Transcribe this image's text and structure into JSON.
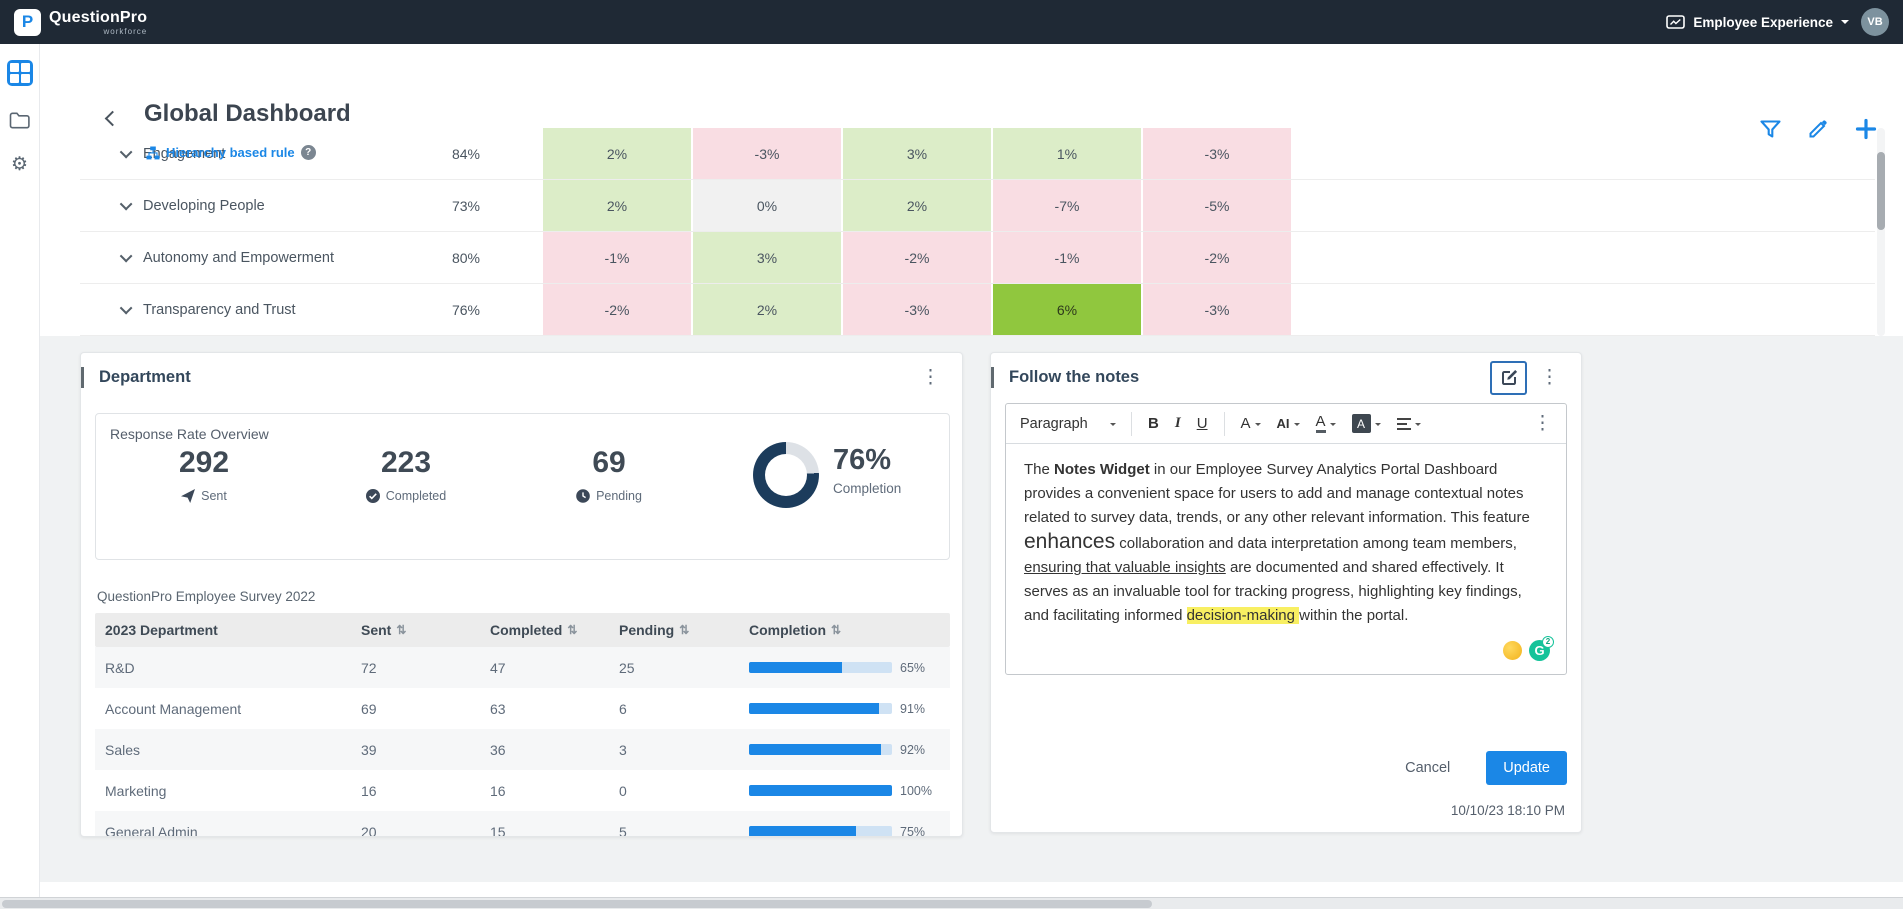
{
  "navbar": {
    "brand": "QuestionPro",
    "brand_sub": "workforce",
    "product": "Employee Experience",
    "avatar_initials": "VB"
  },
  "sidebar": {
    "items": [
      "apps",
      "folders",
      "settings"
    ]
  },
  "header": {
    "title": "Global Dashboard",
    "rule_label": "Hierarchy based rule",
    "help": "?"
  },
  "metrics_table": {
    "rows": [
      {
        "label": "Engagement",
        "score": "84%",
        "values": [
          {
            "v": "2%",
            "t": "pos"
          },
          {
            "v": "-3%",
            "t": "neg"
          },
          {
            "v": "3%",
            "t": "pos"
          },
          {
            "v": "1%",
            "t": "pos"
          },
          {
            "v": "-3%",
            "t": "neg"
          }
        ]
      },
      {
        "label": "Developing People",
        "score": "73%",
        "values": [
          {
            "v": "2%",
            "t": "pos"
          },
          {
            "v": "0%",
            "t": "neutral"
          },
          {
            "v": "2%",
            "t": "pos"
          },
          {
            "v": "-7%",
            "t": "neg"
          },
          {
            "v": "-5%",
            "t": "neg"
          }
        ]
      },
      {
        "label": "Autonomy and Empowerment",
        "score": "80%",
        "values": [
          {
            "v": "-1%",
            "t": "neg"
          },
          {
            "v": "3%",
            "t": "pos"
          },
          {
            "v": "-2%",
            "t": "neg"
          },
          {
            "v": "-1%",
            "t": "neg"
          },
          {
            "v": "-2%",
            "t": "neg"
          }
        ]
      },
      {
        "label": "Transparency and Trust",
        "score": "76%",
        "values": [
          {
            "v": "-2%",
            "t": "neg"
          },
          {
            "v": "2%",
            "t": "pos"
          },
          {
            "v": "-3%",
            "t": "neg"
          },
          {
            "v": "6%",
            "t": "strong"
          },
          {
            "v": "-3%",
            "t": "neg"
          }
        ]
      }
    ]
  },
  "department_card": {
    "title": "Department",
    "overview_title": "Response Rate Overview",
    "stats": [
      {
        "value": "292",
        "label": "Sent",
        "icon": "send-icon"
      },
      {
        "value": "223",
        "label": "Completed",
        "icon": "check-circle-icon"
      },
      {
        "value": "69",
        "label": "Pending",
        "icon": "clock-icon"
      }
    ],
    "donut": {
      "percent": "76%",
      "label": "Completion",
      "value": 76
    },
    "survey_label": "QuestionPro Employee Survey 2022",
    "table": {
      "headers": [
        {
          "label": "2023 Department",
          "sortable": false
        },
        {
          "label": "Sent",
          "sortable": true
        },
        {
          "label": "Completed",
          "sortable": true
        },
        {
          "label": "Pending",
          "sortable": true
        },
        {
          "label": "Completion",
          "sortable": true
        }
      ],
      "rows": [
        {
          "department": "R&D",
          "sent": "72",
          "completed": "47",
          "pending": "25",
          "completion": "65%",
          "pct": 65
        },
        {
          "department": "Account Management",
          "sent": "69",
          "completed": "63",
          "pending": "6",
          "completion": "91%",
          "pct": 91
        },
        {
          "department": "Sales",
          "sent": "39",
          "completed": "36",
          "pending": "3",
          "completion": "92%",
          "pct": 92
        },
        {
          "department": "Marketing",
          "sent": "16",
          "completed": "16",
          "pending": "0",
          "completion": "100%",
          "pct": 100
        },
        {
          "department": "General Admin",
          "sent": "20",
          "completed": "15",
          "pending": "5",
          "completion": "75%",
          "pct": 75
        }
      ]
    }
  },
  "notes_card": {
    "title": "Follow the notes",
    "toolbar": {
      "paragraph": "Paragraph",
      "bold": "B",
      "italic": "I",
      "underline": "U",
      "font_size": "A",
      "ai": "AI",
      "font_color": "A",
      "font_bg": "A"
    },
    "note_segments": [
      {
        "text": "The ",
        "style": ""
      },
      {
        "text": "Notes Widget",
        "style": "bold"
      },
      {
        "text": " in our Employee Survey Analytics Portal Dashboard provides a convenient space for users to add and manage contextual notes related to survey data, trends, or any other relevant information. This feature ",
        "style": ""
      },
      {
        "text": "enhances",
        "style": "big"
      },
      {
        "text": " collaboration and data interpretation among team members, ",
        "style": ""
      },
      {
        "text": "ensuring that valuable insights",
        "style": "underline"
      },
      {
        "text": " are documented and shared effectively. It serves as an invaluable tool for tracking progress, highlighting key findings, and facilitating informed ",
        "style": ""
      },
      {
        "text": "decision-making ",
        "style": "highlight"
      },
      {
        "text": "within the portal.",
        "style": ""
      }
    ],
    "assistant": {
      "grammarly_letter": "G",
      "grammarly_badge": "2"
    },
    "cancel_label": "Cancel",
    "update_label": "Update",
    "timestamp": "10/10/23 18:10 PM"
  },
  "icons": {
    "kebab": "⋮",
    "sort": "⇅",
    "gear": "⚙"
  },
  "colors": {
    "accent": "#1b87e6",
    "navbar_bg": "#1f2935",
    "pos_bg": "#dcedc8",
    "neg_bg": "#f9dde3",
    "neutral_bg": "#f1f1f1",
    "strong_bg": "#90c73e",
    "donut": "#1c3c5c",
    "donut_track": "#dde1e6",
    "bar": "#1b87e6",
    "bar_track": "#cfe2f4",
    "highlight": "#f8ef62",
    "grammarly_green": "#15c39a"
  }
}
